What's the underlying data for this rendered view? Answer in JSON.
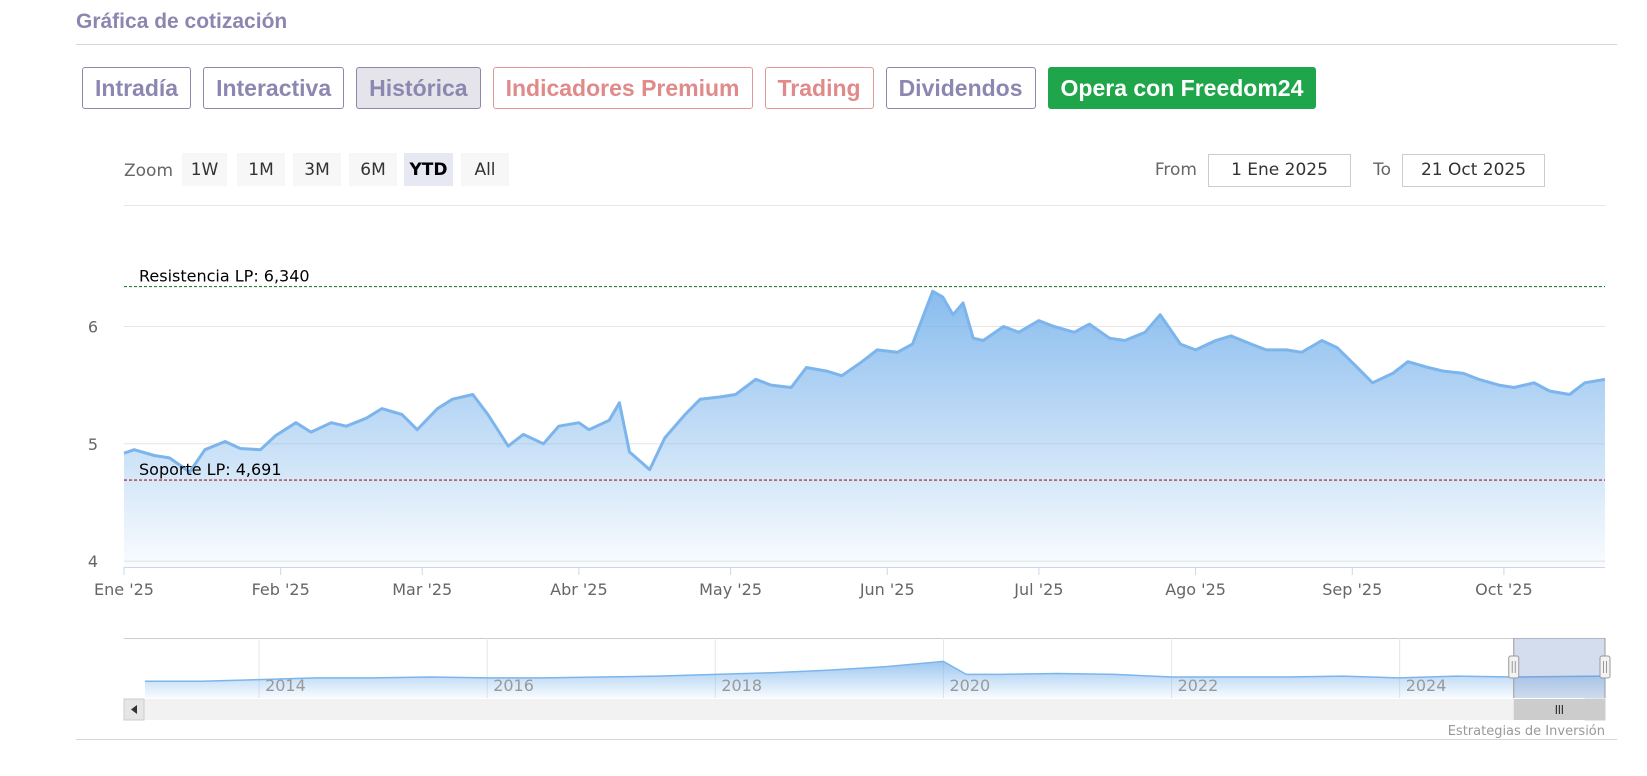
{
  "section": {
    "title": "Gráfica de cotización"
  },
  "tabs": [
    {
      "label": "Intradía",
      "style": "normal"
    },
    {
      "label": "Interactiva",
      "style": "normal"
    },
    {
      "label": "Histórica",
      "style": "active"
    },
    {
      "label": "Indicadores Premium",
      "style": "premium"
    },
    {
      "label": "Trading",
      "style": "premium"
    },
    {
      "label": "Dividendos",
      "style": "normal"
    },
    {
      "label": "Opera con Freedom24",
      "style": "cta"
    }
  ],
  "range_selector": {
    "zoom_label": "Zoom",
    "buttons": [
      "1W",
      "1M",
      "3M",
      "6M",
      "YTD",
      "All"
    ],
    "selected": "YTD",
    "from_label": "From",
    "from_value": "1 Ene 2025",
    "to_label": "To",
    "to_value": "21 Oct 2025"
  },
  "credit": "Estrategias de Inversión",
  "colors": {
    "series": "#7cb5ec",
    "resistance": "#2e7d32",
    "support": "#a31818",
    "accent": "#8c87b0",
    "cta": "#1fa64a"
  },
  "chart_data": {
    "type": "area",
    "x_start": "2025-01-01",
    "x_end": "2025-10-21",
    "x_ticks": [
      {
        "date": "2025-01-01",
        "label": "Ene '25"
      },
      {
        "date": "2025-02-01",
        "label": "Feb '25"
      },
      {
        "date": "2025-03-01",
        "label": "Mar '25"
      },
      {
        "date": "2025-04-01",
        "label": "Abr '25"
      },
      {
        "date": "2025-05-01",
        "label": "May '25"
      },
      {
        "date": "2025-06-01",
        "label": "Jun '25"
      },
      {
        "date": "2025-07-01",
        "label": "Jul '25"
      },
      {
        "date": "2025-08-01",
        "label": "Ago '25"
      },
      {
        "date": "2025-09-01",
        "label": "Sep '25"
      },
      {
        "date": "2025-10-01",
        "label": "Oct '25"
      }
    ],
    "ylim": [
      3.95,
      6.95
    ],
    "y_ticks": [
      4,
      5,
      6
    ],
    "grid": true,
    "series": [
      {
        "x": [
          "2025-01-01",
          "2025-01-03",
          "2025-01-07",
          "2025-01-10",
          "2025-01-14",
          "2025-01-17",
          "2025-01-21",
          "2025-01-24",
          "2025-01-28",
          "2025-01-31",
          "2025-02-04",
          "2025-02-07",
          "2025-02-11",
          "2025-02-14",
          "2025-02-18",
          "2025-02-21",
          "2025-02-25",
          "2025-02-28",
          "2025-03-04",
          "2025-03-07",
          "2025-03-11",
          "2025-03-14",
          "2025-03-18",
          "2025-03-21",
          "2025-03-25",
          "2025-03-28",
          "2025-04-01",
          "2025-04-03",
          "2025-04-07",
          "2025-04-09",
          "2025-04-11",
          "2025-04-15",
          "2025-04-18",
          "2025-04-22",
          "2025-04-25",
          "2025-04-29",
          "2025-05-02",
          "2025-05-06",
          "2025-05-09",
          "2025-05-13",
          "2025-05-16",
          "2025-05-20",
          "2025-05-23",
          "2025-05-27",
          "2025-05-30",
          "2025-06-03",
          "2025-06-06",
          "2025-06-10",
          "2025-06-12",
          "2025-06-14",
          "2025-06-16",
          "2025-06-18",
          "2025-06-20",
          "2025-06-24",
          "2025-06-27",
          "2025-07-01",
          "2025-07-04",
          "2025-07-08",
          "2025-07-11",
          "2025-07-15",
          "2025-07-18",
          "2025-07-22",
          "2025-07-25",
          "2025-07-29",
          "2025-08-01",
          "2025-08-05",
          "2025-08-08",
          "2025-08-12",
          "2025-08-15",
          "2025-08-19",
          "2025-08-22",
          "2025-08-26",
          "2025-08-29",
          "2025-09-02",
          "2025-09-05",
          "2025-09-09",
          "2025-09-12",
          "2025-09-16",
          "2025-09-19",
          "2025-09-23",
          "2025-09-26",
          "2025-09-30",
          "2025-10-03",
          "2025-10-07",
          "2025-10-10",
          "2025-10-14",
          "2025-10-17",
          "2025-10-21"
        ],
        "values": [
          4.92,
          4.95,
          4.9,
          4.88,
          4.76,
          4.95,
          5.02,
          4.96,
          4.95,
          5.07,
          5.18,
          5.1,
          5.18,
          5.15,
          5.22,
          5.3,
          5.25,
          5.12,
          5.3,
          5.38,
          5.42,
          5.25,
          4.98,
          5.08,
          5.0,
          5.15,
          5.18,
          5.12,
          5.2,
          5.35,
          4.93,
          4.78,
          5.05,
          5.25,
          5.38,
          5.4,
          5.42,
          5.55,
          5.5,
          5.48,
          5.65,
          5.62,
          5.58,
          5.7,
          5.8,
          5.78,
          5.85,
          6.3,
          6.25,
          6.1,
          6.2,
          5.9,
          5.88,
          6.0,
          5.95,
          6.05,
          6.0,
          5.95,
          6.02,
          5.9,
          5.88,
          5.95,
          6.1,
          5.85,
          5.8,
          5.88,
          5.92,
          5.85,
          5.8,
          5.8,
          5.78,
          5.88,
          5.82,
          5.65,
          5.52,
          5.6,
          5.7,
          5.65,
          5.62,
          5.6,
          5.55,
          5.5,
          5.48,
          5.52,
          5.45,
          5.42,
          5.52,
          5.55
        ]
      }
    ],
    "annotations": [
      {
        "type": "hline",
        "value": 6.34,
        "label": "Resistencia LP: 6,340"
      },
      {
        "type": "hline",
        "value": 4.691,
        "label": "Soporte LP: 4,691"
      }
    ],
    "navigator": {
      "x_ticks": [
        "2014",
        "2016",
        "2018",
        "2020",
        "2022",
        "2024"
      ],
      "years": [
        2013.0,
        2013.5,
        2014.0,
        2014.5,
        2015.0,
        2015.5,
        2016.0,
        2016.5,
        2017.0,
        2017.5,
        2018.0,
        2018.5,
        2019.0,
        2019.5,
        2020.0,
        2020.2,
        2020.5,
        2021.0,
        2021.5,
        2022.0,
        2022.5,
        2023.0,
        2023.5,
        2024.0,
        2024.5,
        2025.0,
        2025.8
      ],
      "values": [
        1.0,
        1.0,
        1.2,
        1.4,
        1.4,
        1.5,
        1.4,
        1.4,
        1.5,
        1.6,
        1.8,
        2.0,
        2.3,
        2.7,
        3.3,
        1.8,
        1.8,
        1.9,
        1.8,
        1.5,
        1.5,
        1.5,
        1.6,
        1.4,
        1.6,
        1.5,
        1.6
      ]
    }
  }
}
